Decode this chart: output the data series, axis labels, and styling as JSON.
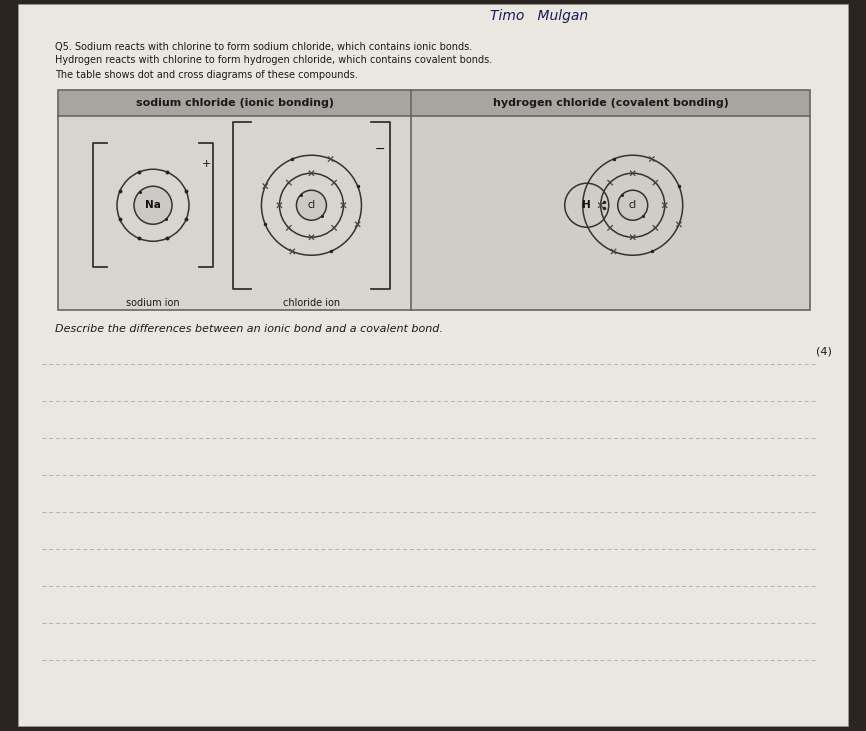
{
  "bg_outer": "#2a2520",
  "bg_page": "#eae6e0",
  "handwriting": "Timo   Mulgan",
  "line1": "Q5. Sodium reacts with chlorine to form sodium chloride, which contains ionic bonds.",
  "line2": "Hydrogen reacts with chlorine to form hydrogen chloride, which contains covalent bonds.",
  "line3": "The table shows dot and cross diagrams of these compounds.",
  "col_left_header": "sodium chloride (ionic bonding)",
  "col_right_header": "hydrogen chloride (covalent bonding)",
  "label_na": "sodium ion",
  "label_cl": "chloride ion",
  "question": "Describe the differences between an ionic bond and a covalent bond.",
  "marks": "(4)",
  "num_lines": 9,
  "font_color": "#1a1a1a",
  "table_header_bg": "#a8a49f",
  "table_body_left_bg": "#d8d4ce",
  "table_body_right_bg": "#d0ccc6",
  "answer_line_color": "#aaaaaa",
  "atom_color": "#333333",
  "dot_color": "#222222",
  "cross_color": "#444444"
}
